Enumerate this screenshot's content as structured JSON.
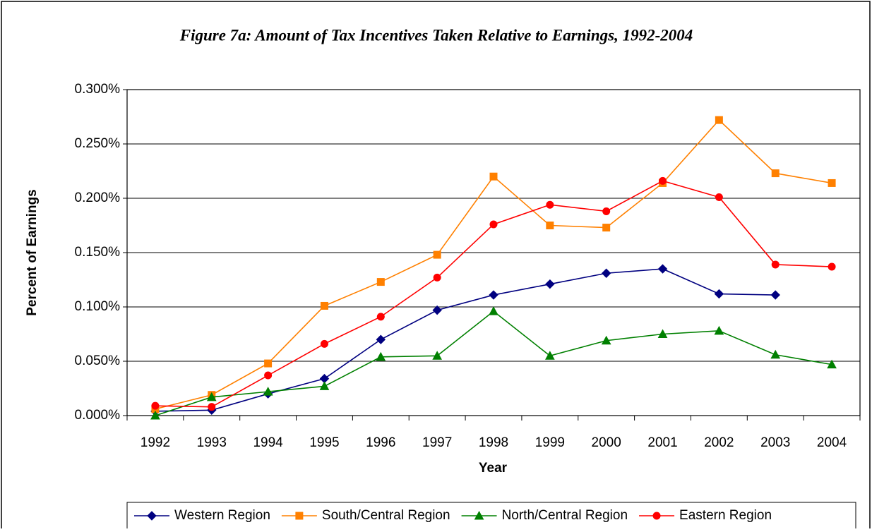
{
  "chart_data": {
    "type": "line",
    "title": "Figure 7a: Amount of Tax Incentives Taken Relative to Earnings, 1992-2004",
    "x_label": "Year",
    "y_label": "Percent of Earnings",
    "categories": [
      "1992",
      "1993",
      "1994",
      "1995",
      "1996",
      "1997",
      "1998",
      "1999",
      "2000",
      "2001",
      "2002",
      "2003",
      "2004"
    ],
    "series": [
      {
        "name": "Western Region",
        "color": "#000080",
        "marker": "diamond",
        "values": [
          0.004,
          0.005,
          0.02,
          0.034,
          0.07,
          0.097,
          0.111,
          0.121,
          0.131,
          0.135,
          0.112,
          0.111,
          null
        ]
      },
      {
        "name": "South/Central Region",
        "color": "#ff8000",
        "marker": "square",
        "values": [
          0.006,
          0.019,
          0.048,
          0.101,
          0.123,
          0.148,
          0.22,
          0.175,
          0.173,
          0.214,
          0.272,
          0.223,
          0.214
        ]
      },
      {
        "name": "North/Central Region",
        "color": "#008000",
        "marker": "triangle",
        "values": [
          0.0,
          0.017,
          0.022,
          0.027,
          0.054,
          0.055,
          0.096,
          0.055,
          0.069,
          0.075,
          0.078,
          0.056,
          0.047
        ]
      },
      {
        "name": "Eastern Region",
        "color": "#ff0000",
        "marker": "circle",
        "values": [
          0.009,
          0.008,
          0.037,
          0.066,
          0.091,
          0.127,
          0.176,
          0.194,
          0.188,
          0.216,
          0.201,
          0.139,
          0.137
        ]
      }
    ],
    "ylim": [
      0,
      0.3
    ],
    "yticks": [
      {
        "value": 0,
        "label": "0.000%"
      },
      {
        "value": 0.05,
        "label": "0.050%"
      },
      {
        "value": 0.1,
        "label": "0.100%"
      },
      {
        "value": 0.15,
        "label": "0.150%"
      },
      {
        "value": 0.2,
        "label": "0.200%"
      },
      {
        "value": 0.25,
        "label": "0.250%"
      },
      {
        "value": 0.3,
        "label": "0.300%"
      }
    ],
    "grid": true,
    "legend": "bottom"
  }
}
